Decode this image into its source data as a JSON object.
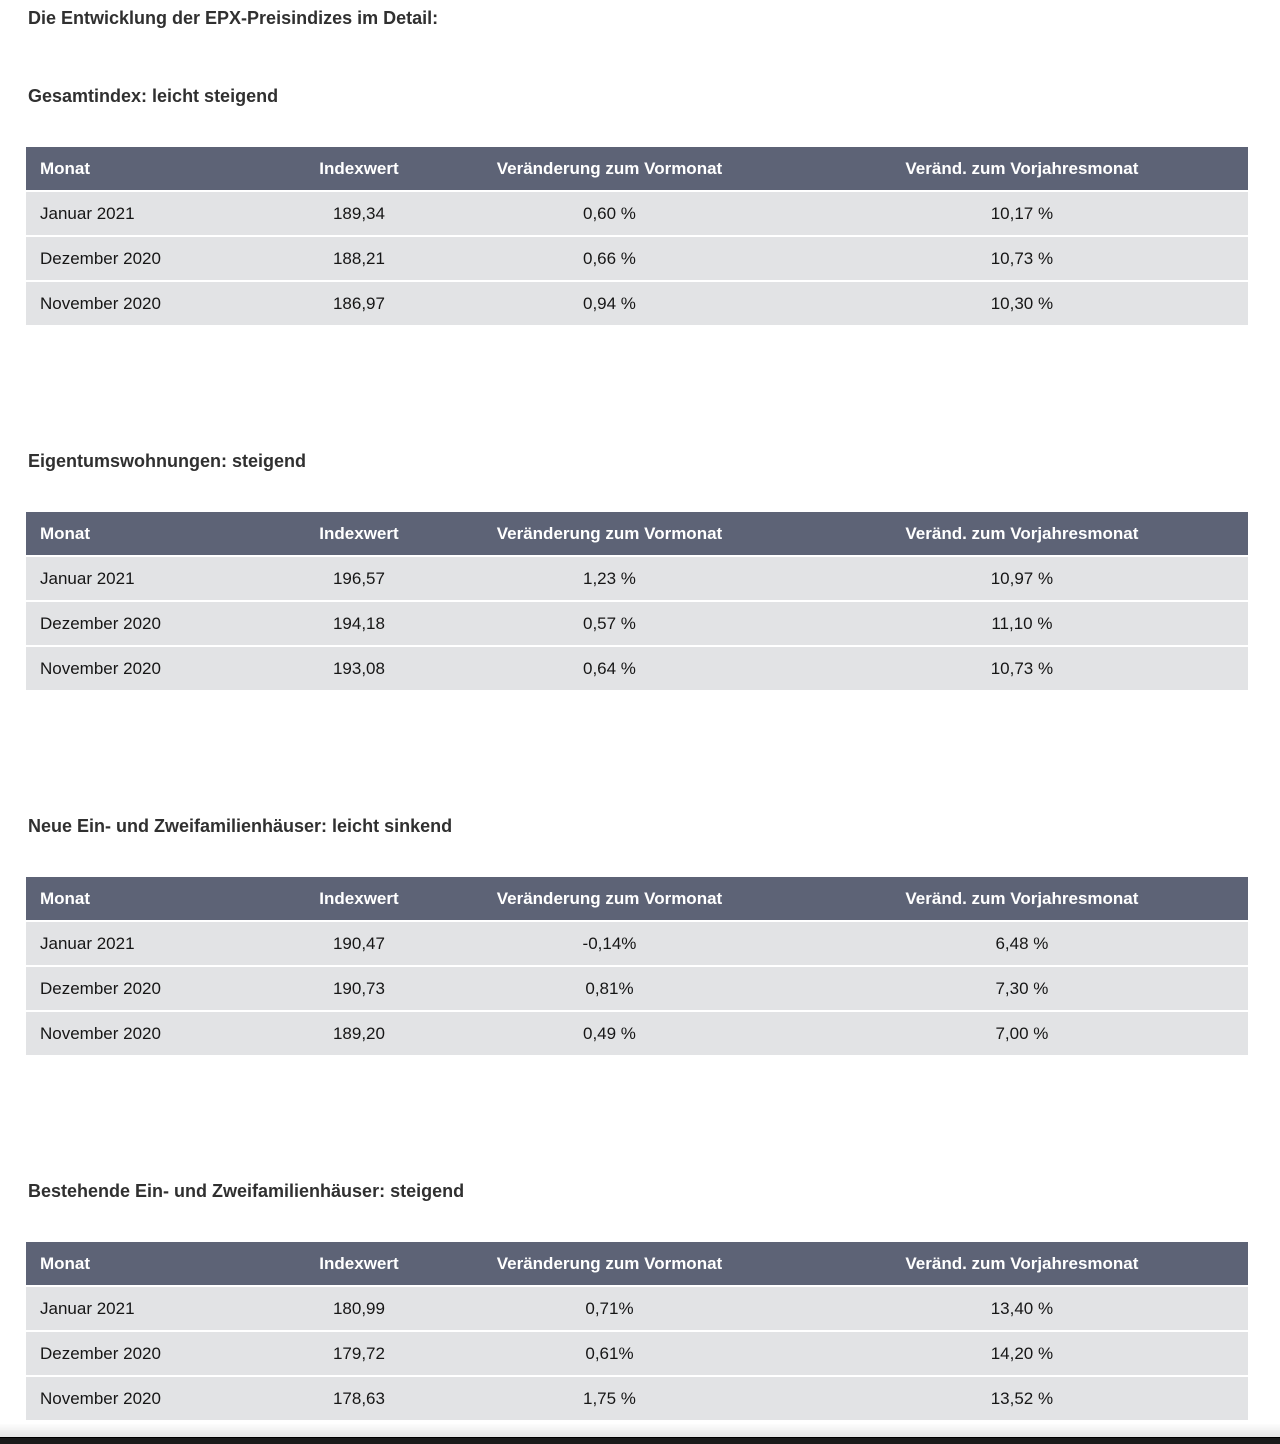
{
  "page": {
    "title": "Die Entwicklung der EPX-Preisindizes im Detail:"
  },
  "table_headers": [
    "Monat",
    "Indexwert",
    "Veränderung zum Vormonat",
    "Veränd. zum Vorjahresmonat"
  ],
  "sections": [
    {
      "heading": "Gesamtindex: leicht steigend",
      "rows": [
        [
          "Januar 2021",
          "189,34",
          "0,60 %",
          "10,17 %"
        ],
        [
          "Dezember 2020",
          "188,21",
          "0,66 %",
          "10,73 %"
        ],
        [
          "November 2020",
          "186,97",
          "0,94 %",
          "10,30 %"
        ]
      ]
    },
    {
      "heading": "Eigentumswohnungen: steigend",
      "rows": [
        [
          "Januar 2021",
          "196,57",
          "1,23 %",
          "10,97 %"
        ],
        [
          "Dezember 2020",
          "194,18",
          "0,57 %",
          "11,10 %"
        ],
        [
          "November 2020",
          "193,08",
          "0,64 %",
          "10,73 %"
        ]
      ]
    },
    {
      "heading": "Neue Ein- und Zweifamilienhäuser: leicht sinkend",
      "rows": [
        [
          "Januar 2021",
          "190,47",
          "-0,14%",
          "6,48 %"
        ],
        [
          "Dezember 2020",
          "190,73",
          "0,81%",
          "7,30 %"
        ],
        [
          "November 2020",
          "189,20",
          "0,49 %",
          "7,00 %"
        ]
      ]
    },
    {
      "heading": "Bestehende Ein- und Zweifamilienhäuser: steigend",
      "rows": [
        [
          "Januar 2021",
          "180,99",
          "0,71%",
          "13,40 %"
        ],
        [
          "Dezember 2020",
          "179,72",
          "0,61%",
          "14,20 %"
        ],
        [
          "November 2020",
          "178,63",
          "1,75 %",
          "13,52 %"
        ]
      ]
    }
  ],
  "colors": {
    "table_header_bg": "#5d6376",
    "table_header_text": "#ffffff",
    "table_row_bg": "#e2e3e5",
    "heading_text": "#303030",
    "cell_text": "#161616",
    "bottom_bar": "#1b1b1b"
  }
}
